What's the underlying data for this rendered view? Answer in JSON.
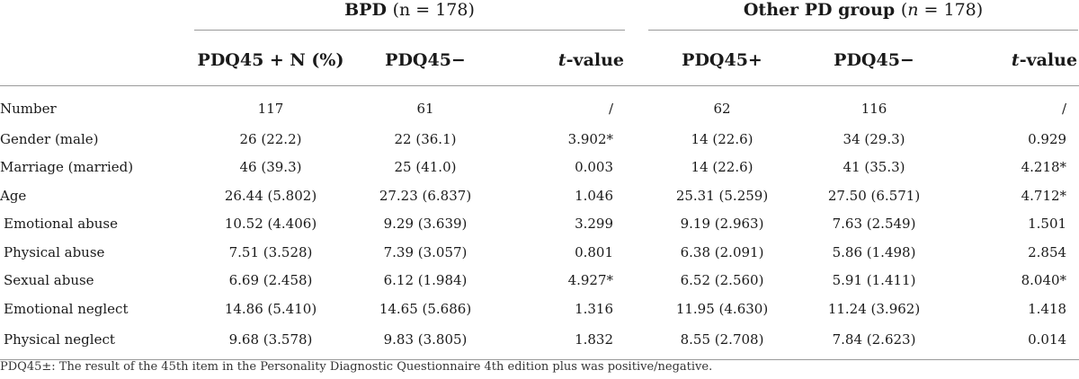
{
  "groups": {
    "bpd": {
      "label": "BPD",
      "n": "(n = 178)"
    },
    "other": {
      "label": "Other PD group",
      "n_prefix": "(",
      "n_italic": "n",
      "n_suffix": " = 178)"
    }
  },
  "columns": {
    "bpd_pos": "PDQ45 + N (%)",
    "bpd_neg": "PDQ45−",
    "t_italic": "t",
    "t_suffix": "-value",
    "other_pos": "PDQ45+",
    "other_neg": "PDQ45−"
  },
  "rows": [
    {
      "label": "Number",
      "v": [
        "117",
        "61",
        "/",
        "62",
        "116",
        "/"
      ]
    },
    {
      "label": "Gender (male)",
      "v": [
        "26 (22.2)",
        "22 (36.1)",
        "3.902*",
        "14 (22.6)",
        "34 (29.3)",
        "0.929"
      ]
    },
    {
      "label": "Marriage (married)",
      "v": [
        "46 (39.3)",
        "25 (41.0)",
        "0.003",
        "14 (22.6)",
        "41 (35.3)",
        "4.218*"
      ]
    },
    {
      "label": "Age",
      "v": [
        "26.44 (5.802)",
        "27.23 (6.837)",
        "1.046",
        "25.31 (5.259)",
        "27.50 (6.571)",
        "4.712*"
      ]
    },
    {
      "label": "Emotional abuse",
      "v": [
        "10.52 (4.406)",
        "9.29 (3.639)",
        "3.299",
        "9.19 (2.963)",
        "7.63 (2.549)",
        "1.501"
      ]
    },
    {
      "label": "Physical abuse",
      "v": [
        "7.51 (3.528)",
        "7.39 (3.057)",
        "0.801",
        "6.38 (2.091)",
        "5.86 (1.498)",
        "2.854"
      ]
    },
    {
      "label": "Sexual abuse",
      "v": [
        "6.69 (2.458)",
        "6.12 (1.984)",
        "4.927*",
        "6.52 (2.560)",
        "5.91 (1.411)",
        "8.040*"
      ]
    },
    {
      "label": "Emotional neglect",
      "v": [
        "14.86 (5.410)",
        "14.65 (5.686)",
        "1.316",
        "11.95 (4.630)",
        "11.24 (3.962)",
        "1.418"
      ]
    },
    {
      "label": "Physical neglect",
      "v": [
        "9.68 (3.578)",
        "9.83 (3.805)",
        "1.832",
        "8.55 (2.708)",
        "7.84 (2.623)",
        "0.014"
      ]
    }
  ],
  "footnote": "PDQ45±: The result of the 45th item in the Personality Diagnostic Questionnaire 4th edition plus was positive/negative."
}
